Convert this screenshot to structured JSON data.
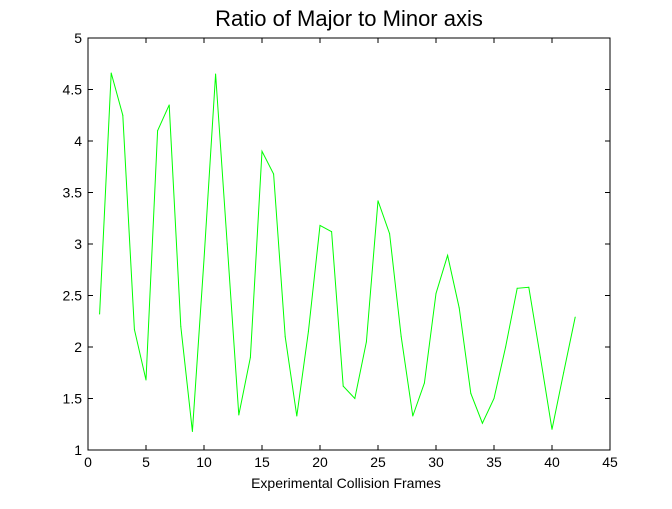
{
  "chart_data": {
    "type": "line",
    "title": "Ratio of Major to Minor axis",
    "xlabel": "Experimental Collision Frames",
    "ylabel": "",
    "xlim": [
      0,
      45
    ],
    "ylim": [
      1,
      5
    ],
    "xticks": [
      0,
      5,
      10,
      15,
      20,
      25,
      30,
      35,
      40,
      45
    ],
    "yticks": [
      1,
      1.5,
      2,
      2.5,
      3,
      3.5,
      4,
      4.5,
      5
    ],
    "xtick_labels": [
      "0",
      "5",
      "10",
      "15",
      "20",
      "25",
      "30",
      "35",
      "40",
      "45"
    ],
    "ytick_labels": [
      "1",
      "1.5",
      "2",
      "2.5",
      "3",
      "3.5",
      "4",
      "4.5",
      "5"
    ],
    "grid": false,
    "line_color": "#00ff00",
    "series": [
      {
        "x": [
          1,
          2,
          3,
          4,
          5,
          6,
          7,
          8,
          9,
          10,
          11,
          12,
          13,
          14,
          15,
          16,
          17,
          18,
          19,
          20,
          21,
          22,
          23,
          24,
          25,
          26,
          27,
          28,
          29,
          30,
          31,
          32,
          33,
          34,
          35,
          36,
          37,
          38,
          39,
          40,
          41,
          42
        ],
        "values": [
          2.32,
          4.66,
          4.25,
          2.17,
          1.68,
          4.1,
          4.35,
          2.2,
          1.18,
          2.85,
          4.65,
          3.0,
          1.34,
          1.9,
          3.9,
          3.68,
          2.1,
          1.33,
          2.15,
          3.18,
          3.12,
          1.62,
          1.5,
          2.05,
          3.42,
          3.1,
          2.1,
          1.33,
          1.65,
          2.52,
          2.89,
          2.38,
          1.55,
          1.26,
          1.5,
          2.0,
          2.57,
          2.58,
          1.9,
          1.2,
          1.75,
          2.29
        ]
      }
    ]
  }
}
